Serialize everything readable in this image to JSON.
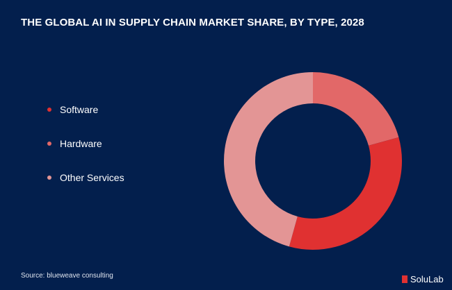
{
  "chart_data": {
    "type": "pie",
    "subtype": "donut",
    "title": "THE GLOBAL AI IN SUPPLY CHAIN MARKET SHARE, BY TYPE, 2028",
    "categories": [
      "Software",
      "Hardware",
      "Other Services"
    ],
    "values": [
      33.6,
      20.7,
      45.7
    ],
    "colors": [
      "#e03131",
      "#e26868",
      "#e39595"
    ],
    "segment_order_clockwise_from_top": [
      "Hardware",
      "Software",
      "Other Services"
    ],
    "legend_position": "left"
  },
  "source": "Source: blueweave consulting",
  "logo": "SoluLab",
  "background_color": "#031f4d"
}
